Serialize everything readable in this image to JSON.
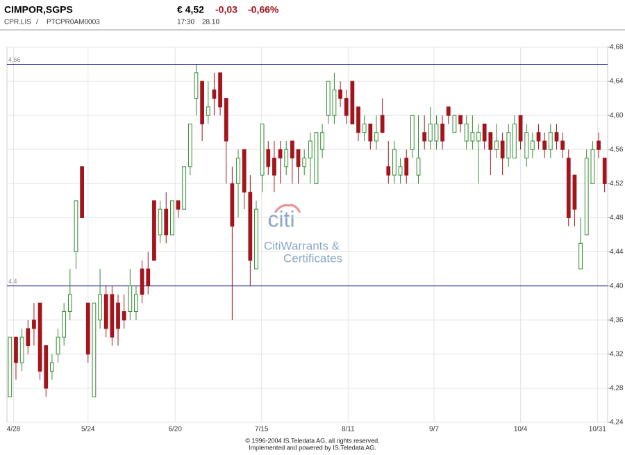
{
  "header": {
    "name": "CIMPOR,SGPS",
    "price": "€ 4,52",
    "change": "-0,03",
    "change_pct": "-0,66%",
    "symbol": "CPR.LIS",
    "separator": "/",
    "isin": "PTCPR0AM0003",
    "time": "17:30",
    "date": "28.10"
  },
  "footer": {
    "copyright": "© 1996-2004 IS.Teledata AG, all rights reserved.",
    "powered": "Implemented and powered by IS.Teledata AG."
  },
  "watermark": {
    "logo": "citi",
    "line1": "CitiWarrants &",
    "line2": "Certificates"
  },
  "chart_data": {
    "type": "candlestick",
    "up_color": "#2e8b2e",
    "down_color": "#a3141c",
    "reference_color": "#00008b",
    "ylim": [
      4.24,
      4.68
    ],
    "yticks": [
      {
        "value": 4.24,
        "label": "4,24"
      },
      {
        "value": 4.28,
        "label": "4,28"
      },
      {
        "value": 4.32,
        "label": "4,32"
      },
      {
        "value": 4.36,
        "label": "4,36"
      },
      {
        "value": 4.4,
        "label": "4,40"
      },
      {
        "value": 4.44,
        "label": "4,44"
      },
      {
        "value": 4.48,
        "label": "4,48"
      },
      {
        "value": 4.52,
        "label": "4,52"
      },
      {
        "value": 4.56,
        "label": "4,56"
      },
      {
        "value": 4.6,
        "label": "4,60"
      },
      {
        "value": 4.64,
        "label": "4,64"
      },
      {
        "value": 4.68,
        "label": "4,68"
      }
    ],
    "xlim": [
      0,
      100
    ],
    "xticks": [
      {
        "value": 0.6,
        "label": "4/28"
      },
      {
        "value": 13,
        "label": "5/24"
      },
      {
        "value": 27.5,
        "label": "6/20"
      },
      {
        "value": 41.9,
        "label": "7/15"
      },
      {
        "value": 56.3,
        "label": "8/11"
      },
      {
        "value": 70.6,
        "label": "9/7"
      },
      {
        "value": 85,
        "label": "10/4"
      },
      {
        "value": 97.8,
        "label": "10/31"
      }
    ],
    "reference_lines": [
      {
        "value": 4.66,
        "label": "4,66"
      },
      {
        "value": 4.4,
        "label": "4,4"
      }
    ],
    "grid": true,
    "candles": [
      [
        4.27,
        4.34,
        4.27,
        4.34
      ],
      [
        4.34,
        4.34,
        4.29,
        4.31
      ],
      [
        4.31,
        4.35,
        4.3,
        4.34
      ],
      [
        4.35,
        4.36,
        4.32,
        4.33
      ],
      [
        4.36,
        4.38,
        4.33,
        4.35
      ],
      [
        4.38,
        4.38,
        4.29,
        4.3
      ],
      [
        4.33,
        4.33,
        4.27,
        4.28
      ],
      [
        4.3,
        4.32,
        4.29,
        4.31
      ],
      [
        4.32,
        4.35,
        4.31,
        4.34
      ],
      [
        4.34,
        4.38,
        4.33,
        4.37
      ],
      [
        4.37,
        4.42,
        4.36,
        4.39
      ],
      [
        4.44,
        4.5,
        4.42,
        4.5
      ],
      [
        4.54,
        4.54,
        4.48,
        4.48
      ],
      [
        4.38,
        4.38,
        4.31,
        4.32
      ],
      [
        4.27,
        4.38,
        4.27,
        4.38
      ],
      [
        4.36,
        4.42,
        4.35,
        4.39
      ],
      [
        4.39,
        4.4,
        4.34,
        4.35
      ],
      [
        4.39,
        4.4,
        4.33,
        4.34
      ],
      [
        4.38,
        4.39,
        4.33,
        4.35
      ],
      [
        4.37,
        4.39,
        4.35,
        4.36
      ],
      [
        4.37,
        4.42,
        4.36,
        4.4
      ],
      [
        4.37,
        4.4,
        4.36,
        4.39
      ],
      [
        4.42,
        4.43,
        4.38,
        4.39
      ],
      [
        4.42,
        4.44,
        4.39,
        4.4
      ],
      [
        4.5,
        4.5,
        4.43,
        4.43
      ],
      [
        4.46,
        4.5,
        4.45,
        4.49
      ],
      [
        4.49,
        4.51,
        4.45,
        4.46
      ],
      [
        4.46,
        4.5,
        4.46,
        4.5
      ],
      [
        4.5,
        4.5,
        4.48,
        4.49
      ],
      [
        4.49,
        4.54,
        4.49,
        4.54
      ],
      [
        4.54,
        4.59,
        4.53,
        4.59
      ],
      [
        4.62,
        4.66,
        4.6,
        4.65
      ],
      [
        4.64,
        4.64,
        4.57,
        4.59
      ],
      [
        4.6,
        4.64,
        4.59,
        4.61
      ],
      [
        4.63,
        4.65,
        4.6,
        4.62
      ],
      [
        4.65,
        4.65,
        4.6,
        4.61
      ],
      [
        4.62,
        4.62,
        4.52,
        4.57
      ],
      [
        4.52,
        4.54,
        4.36,
        4.47
      ],
      [
        4.52,
        4.56,
        4.48,
        4.55
      ],
      [
        4.56,
        4.56,
        4.49,
        4.51
      ],
      [
        4.51,
        4.53,
        4.4,
        4.43
      ],
      [
        4.42,
        4.5,
        4.42,
        4.49
      ],
      [
        4.53,
        4.59,
        4.51,
        4.59
      ],
      [
        4.56,
        4.57,
        4.53,
        4.54
      ],
      [
        4.55,
        4.57,
        4.51,
        4.53
      ],
      [
        4.56,
        4.57,
        4.52,
        4.55
      ],
      [
        4.54,
        4.57,
        4.53,
        4.56
      ],
      [
        4.57,
        4.57,
        4.52,
        4.55
      ],
      [
        4.56,
        4.56,
        4.52,
        4.54
      ],
      [
        4.54,
        4.56,
        4.53,
        4.55
      ],
      [
        4.55,
        4.58,
        4.52,
        4.57
      ],
      [
        4.52,
        4.58,
        4.52,
        4.58
      ],
      [
        4.56,
        4.59,
        4.55,
        4.58
      ],
      [
        4.6,
        4.64,
        4.59,
        4.64
      ],
      [
        4.6,
        4.65,
        4.59,
        4.63
      ],
      [
        4.63,
        4.64,
        4.61,
        4.62
      ],
      [
        4.62,
        4.63,
        4.59,
        4.6
      ],
      [
        4.64,
        4.64,
        4.59,
        4.59
      ],
      [
        4.61,
        4.61,
        4.57,
        4.58
      ],
      [
        4.58,
        4.6,
        4.57,
        4.59
      ],
      [
        4.59,
        4.59,
        4.56,
        4.57
      ],
      [
        4.57,
        4.6,
        4.56,
        4.58
      ],
      [
        4.6,
        4.62,
        4.58,
        4.58
      ],
      [
        4.54,
        4.57,
        4.52,
        4.53
      ],
      [
        4.53,
        4.57,
        4.52,
        4.56
      ],
      [
        4.53,
        4.55,
        4.52,
        4.54
      ],
      [
        4.55,
        4.56,
        4.52,
        4.53
      ],
      [
        4.56,
        4.6,
        4.55,
        4.6
      ],
      [
        4.53,
        4.6,
        4.52,
        4.55
      ],
      [
        4.58,
        4.6,
        4.56,
        4.57
      ],
      [
        4.57,
        4.61,
        4.56,
        4.59
      ],
      [
        4.57,
        4.6,
        4.56,
        4.59
      ],
      [
        4.59,
        4.6,
        4.56,
        4.57
      ],
      [
        4.61,
        4.61,
        4.59,
        4.6
      ],
      [
        4.58,
        4.6,
        4.58,
        4.6
      ],
      [
        4.6,
        4.6,
        4.58,
        4.59
      ],
      [
        4.57,
        4.6,
        4.56,
        4.59
      ],
      [
        4.57,
        4.6,
        4.56,
        4.58
      ],
      [
        4.57,
        4.59,
        4.52,
        4.58
      ],
      [
        4.59,
        4.59,
        4.56,
        4.57
      ],
      [
        4.58,
        4.58,
        4.53,
        4.56
      ],
      [
        4.56,
        4.59,
        4.55,
        4.57
      ],
      [
        4.57,
        4.58,
        4.53,
        4.55
      ],
      [
        4.55,
        4.59,
        4.54,
        4.58
      ],
      [
        4.55,
        4.6,
        4.55,
        4.59
      ],
      [
        4.6,
        4.6,
        4.56,
        4.57
      ],
      [
        4.55,
        4.59,
        4.54,
        4.58
      ],
      [
        4.56,
        4.58,
        4.55,
        4.57
      ],
      [
        4.58,
        4.59,
        4.56,
        4.57
      ],
      [
        4.57,
        4.58,
        4.55,
        4.56
      ],
      [
        4.56,
        4.59,
        4.55,
        4.58
      ],
      [
        4.58,
        4.59,
        4.56,
        4.57
      ],
      [
        4.57,
        4.58,
        4.55,
        4.56
      ],
      [
        4.55,
        4.56,
        4.47,
        4.48
      ],
      [
        4.53,
        4.53,
        4.47,
        4.49
      ],
      [
        4.42,
        4.48,
        4.42,
        4.45
      ],
      [
        4.46,
        4.56,
        4.46,
        4.55
      ],
      [
        4.52,
        4.57,
        4.52,
        4.56
      ],
      [
        4.57,
        4.58,
        4.55,
        4.56
      ],
      [
        4.55,
        4.55,
        4.51,
        4.52
      ]
    ]
  }
}
